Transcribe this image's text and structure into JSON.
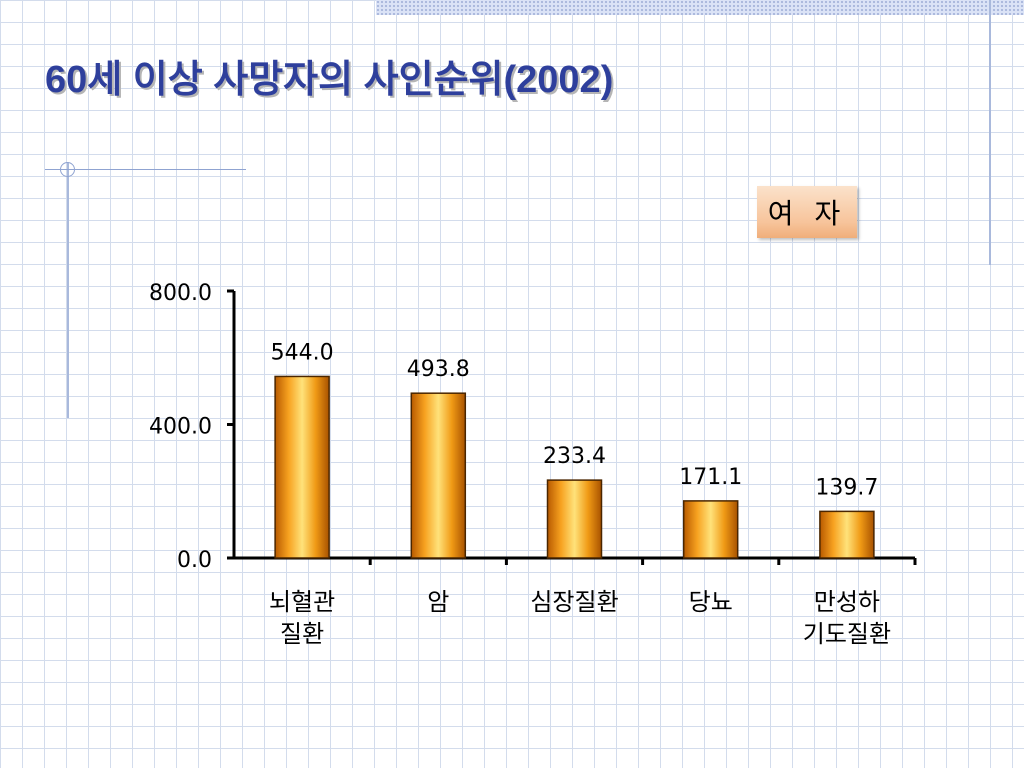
{
  "slide": {
    "title": "60세 이상 사망자의 사인순위(2002)",
    "badge": "여 자"
  },
  "chart_data": {
    "type": "bar",
    "categories": [
      [
        "뇌혈관",
        "질환"
      ],
      [
        "암"
      ],
      [
        "심장질환"
      ],
      [
        "당뇨"
      ],
      [
        "만성하",
        "기도질환"
      ]
    ],
    "values": [
      544.0,
      493.8,
      233.4,
      171.1,
      139.7
    ],
    "value_labels": [
      "544.0",
      "493.8",
      "233.4",
      "171.1",
      "139.7"
    ],
    "yticks": [
      0,
      400,
      800
    ],
    "ytick_labels": [
      "0.0",
      "400.0",
      "800.0"
    ],
    "ylim": [
      0,
      800
    ],
    "grid": false,
    "legend": "none",
    "bar_gradient": [
      "#b85a00",
      "#f7a220",
      "#ffe27a",
      "#f09a15",
      "#a85200"
    ],
    "bar_outline": "#4a2600"
  }
}
